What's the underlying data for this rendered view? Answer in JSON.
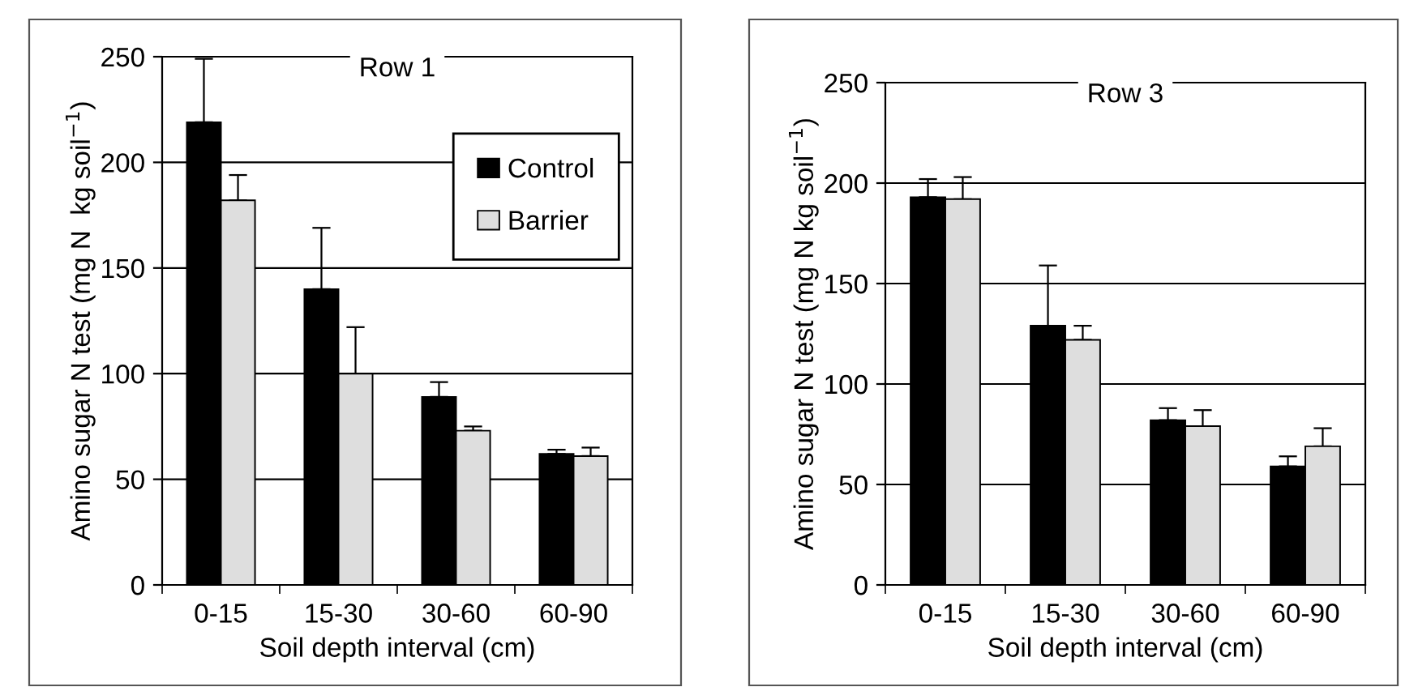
{
  "chart_data": [
    {
      "type": "bar",
      "title": "Row 1",
      "xlabel": "Soil depth interval (cm)",
      "ylabel": "Amino sugar N test (mg N  kg soil$^{−1}$)",
      "categories": [
        "0-15",
        "15-30",
        "30-60",
        "60-90"
      ],
      "ylim": [
        0,
        250
      ],
      "yticks": [
        0,
        50,
        100,
        150,
        200,
        250
      ],
      "grid": "y",
      "legend": "top right",
      "series": [
        {
          "name": "Control",
          "color": "#000000",
          "values": [
            219,
            140,
            89,
            62
          ],
          "errors": [
            [
              219,
              249
            ],
            [
              140,
              169
            ],
            [
              89,
              96
            ],
            [
              62,
              64
            ]
          ]
        },
        {
          "name": "Barrier",
          "color": "#dedede",
          "values": [
            182,
            100,
            73,
            61
          ],
          "errors": [
            [
              182,
              194
            ],
            [
              100,
              122
            ],
            [
              73,
              75
            ],
            [
              61,
              65
            ]
          ]
        }
      ]
    },
    {
      "type": "bar",
      "title": "Row 3",
      "xlabel": "Soil depth interval (cm)",
      "ylabel": "Amino sugar N test (mg N kg soil$^{−1}$)",
      "categories": [
        "0-15",
        "15-30",
        "30-60",
        "60-90"
      ],
      "ylim": [
        0,
        250
      ],
      "yticks": [
        0,
        50,
        100,
        150,
        200,
        250
      ],
      "grid": "y",
      "legend": false,
      "series": [
        {
          "color": "#000000",
          "values": [
            193,
            129,
            82,
            59
          ],
          "errors": [
            [
              193,
              202
            ],
            [
              129,
              159
            ],
            [
              82,
              88
            ],
            [
              59,
              64
            ]
          ]
        },
        {
          "color": "#dedede",
          "values": [
            192,
            122,
            79,
            69
          ],
          "errors": [
            [
              192,
              203
            ],
            [
              122,
              129
            ],
            [
              79,
              87
            ],
            [
              69,
              78
            ]
          ]
        }
      ]
    }
  ]
}
